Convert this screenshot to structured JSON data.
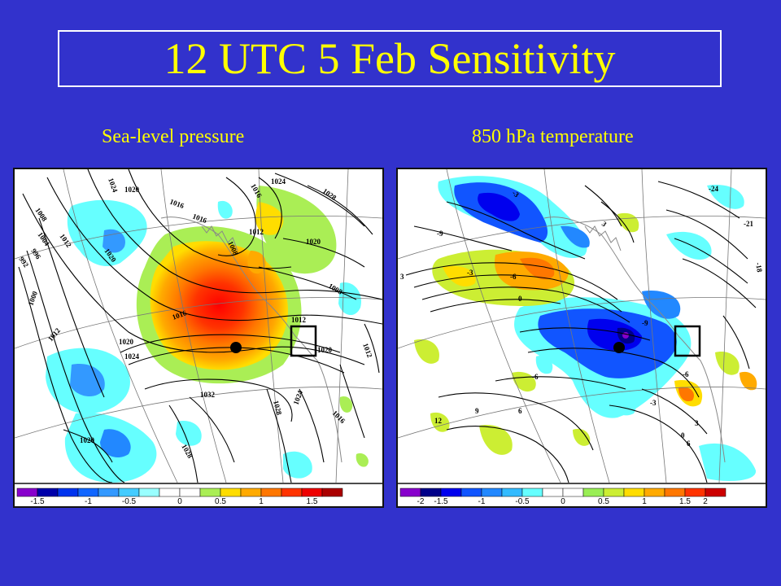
{
  "title": "12 UTC 5 Feb Sensitivity",
  "panels": [
    {
      "subtitle": "Sea-level pressure",
      "contour_labels": [
        "1024",
        "1020",
        "1016",
        "1016",
        "1024",
        "1028",
        "1008",
        "1004",
        "1012",
        "996",
        "992",
        "1020",
        "1016",
        "1012",
        "1020",
        "1008",
        "1000",
        "1012",
        "1016",
        "1008",
        "1020",
        "1024",
        "1012",
        "1020",
        "1012",
        "1032",
        "1028",
        "1024",
        "1016",
        "1020",
        "1028"
      ],
      "colorbar": {
        "colors": [
          "#8800cc",
          "#0000aa",
          "#0033ee",
          "#1166ff",
          "#3399ff",
          "#44ccff",
          "#99ffff",
          "#ffffff",
          "#ffffff",
          "#aaee55",
          "#ffdd00",
          "#ffaa00",
          "#ff7700",
          "#ff3300",
          "#ee0000",
          "#aa0000"
        ],
        "labels": [
          "-1.5",
          "-1",
          "-0.5",
          "0",
          "0.5",
          "1",
          "1.5"
        ]
      }
    },
    {
      "subtitle": "850 hPa temperature",
      "contour_labels": [
        "-24",
        "-21",
        "-18",
        "-9",
        "3",
        "-3",
        "-6",
        "0",
        "-3",
        "3",
        "-9",
        "-6",
        "-3",
        "-6",
        "12",
        "9",
        "6",
        "0",
        "3",
        "6"
      ],
      "colorbar": {
        "colors": [
          "#8800cc",
          "#000088",
          "#0000ee",
          "#1155ff",
          "#2288ff",
          "#33bbff",
          "#66ffff",
          "#ffffff",
          "#ffffff",
          "#99ee55",
          "#ccee33",
          "#ffdd00",
          "#ffaa00",
          "#ff7700",
          "#ff3300",
          "#cc0000"
        ],
        "labels": [
          "-2",
          "-1.5",
          "-1",
          "-0.5",
          "0",
          "0.5",
          "1",
          "1.5",
          "2"
        ]
      }
    }
  ]
}
